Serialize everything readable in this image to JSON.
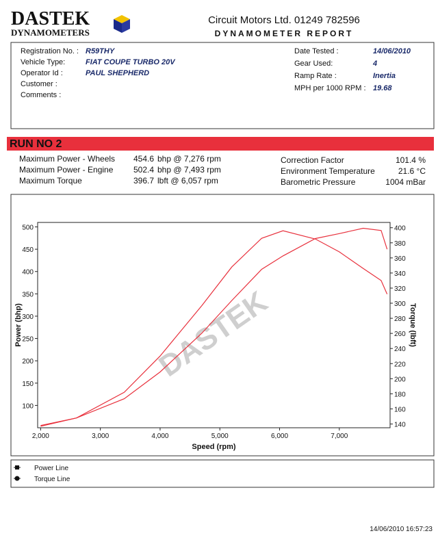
{
  "header": {
    "logo": "DASTEK",
    "logo_sub": "DYNAMOMETERS",
    "company": "Circuit Motors Ltd. 01249 782596",
    "report": "DYNAMOMETER REPORT"
  },
  "vehicle": {
    "left": [
      {
        "label": "Registration No. :",
        "value": "R59THY"
      },
      {
        "label": "Vehicle Type:",
        "value": "FIAT COUPE TURBO 20V"
      },
      {
        "label": "Operator Id :",
        "value": "PAUL SHEPHERD"
      },
      {
        "label": "Customer :"
      },
      {
        "label": "Comments :"
      }
    ],
    "right": [
      {
        "label": "Date Tested :",
        "value": "14/06/2010"
      },
      {
        "label": "Gear Used:",
        "value": "4"
      },
      {
        "label": "Ramp Rate :",
        "value": "Inertia"
      },
      {
        "label": "MPH per 1000 RPM :",
        "value": "19.68"
      }
    ]
  },
  "run": {
    "title": "RUN NO 2",
    "left": [
      {
        "label": "Maximum Power - Wheels",
        "value": "454.6",
        "unit": "bhp @ 7,276 rpm"
      },
      {
        "label": "Maximum Power - Engine",
        "value": "502.4",
        "unit": "bhp @ 7,493 rpm"
      },
      {
        "label": "Maximum Torque",
        "value": "396.7",
        "unit": "lbft @ 6,057 rpm"
      }
    ],
    "right": [
      {
        "label": "Correction Factor",
        "value": "101.4 %"
      },
      {
        "label": "Environment Temperature",
        "value": "21.6 °C"
      },
      {
        "label": "Barometric Pressure",
        "value": "1004 mBar"
      }
    ]
  },
  "chart_data": {
    "type": "line",
    "x_label": "Speed (rpm)",
    "y_label": "Power (bhp)",
    "y2_label": "Torque (lbft)",
    "watermark": "DASTEK",
    "x": [
      2000,
      2600,
      3400,
      4000,
      4700,
      5200,
      5700,
      6057,
      6600,
      7000,
      7400,
      7700,
      7800
    ],
    "series": [
      {
        "name": "Power Line",
        "color": "#e8303c",
        "values": [
          55,
          72,
          115,
          175,
          262,
          335,
          405,
          435,
          474,
          485,
          497,
          492,
          450
        ]
      },
      {
        "name": "Torque Line",
        "color": "#e8303c",
        "axis": "y2",
        "values": [
          137,
          148,
          182,
          230,
          297,
          348,
          386,
          396,
          385,
          368,
          346,
          330,
          312
        ]
      }
    ],
    "xlim": [
      1950,
      7850
    ],
    "ylim": [
      50,
      510
    ],
    "y2lim": [
      135,
      407
    ],
    "xticks": [
      {
        "value": 2000,
        "label": "2,000"
      },
      {
        "value": 3000,
        "label": "3,000"
      },
      {
        "value": 4000,
        "label": "4,000"
      },
      {
        "value": 5000,
        "label": "5,000"
      },
      {
        "value": 6000,
        "label": "6,000"
      },
      {
        "value": 7000,
        "label": "7,000"
      }
    ],
    "yticks": [
      100,
      150,
      200,
      250,
      300,
      350,
      400,
      450,
      500
    ],
    "y2ticks": [
      140,
      160,
      180,
      200,
      220,
      240,
      260,
      280,
      300,
      320,
      340,
      360,
      380,
      400
    ]
  },
  "footer": {
    "timestamp": "14/06/2010 16:57:23"
  }
}
